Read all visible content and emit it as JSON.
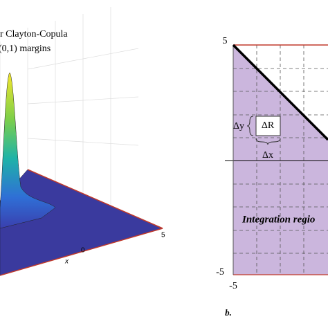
{
  "left_panel": {
    "title_line1": "r Clayton-Copula",
    "title_line2": "(0,1) margins",
    "x_tick_right": "5",
    "x_tick_mid": "0",
    "x_axis_label": "x"
  },
  "right_panel": {
    "y_top": "5",
    "y_bottom": "-5",
    "x_left": "-5",
    "delta_y": "Δy",
    "delta_r": "ΔR",
    "delta_x": "Δx",
    "region_label": "Integration regio",
    "panel_label": "b."
  }
}
